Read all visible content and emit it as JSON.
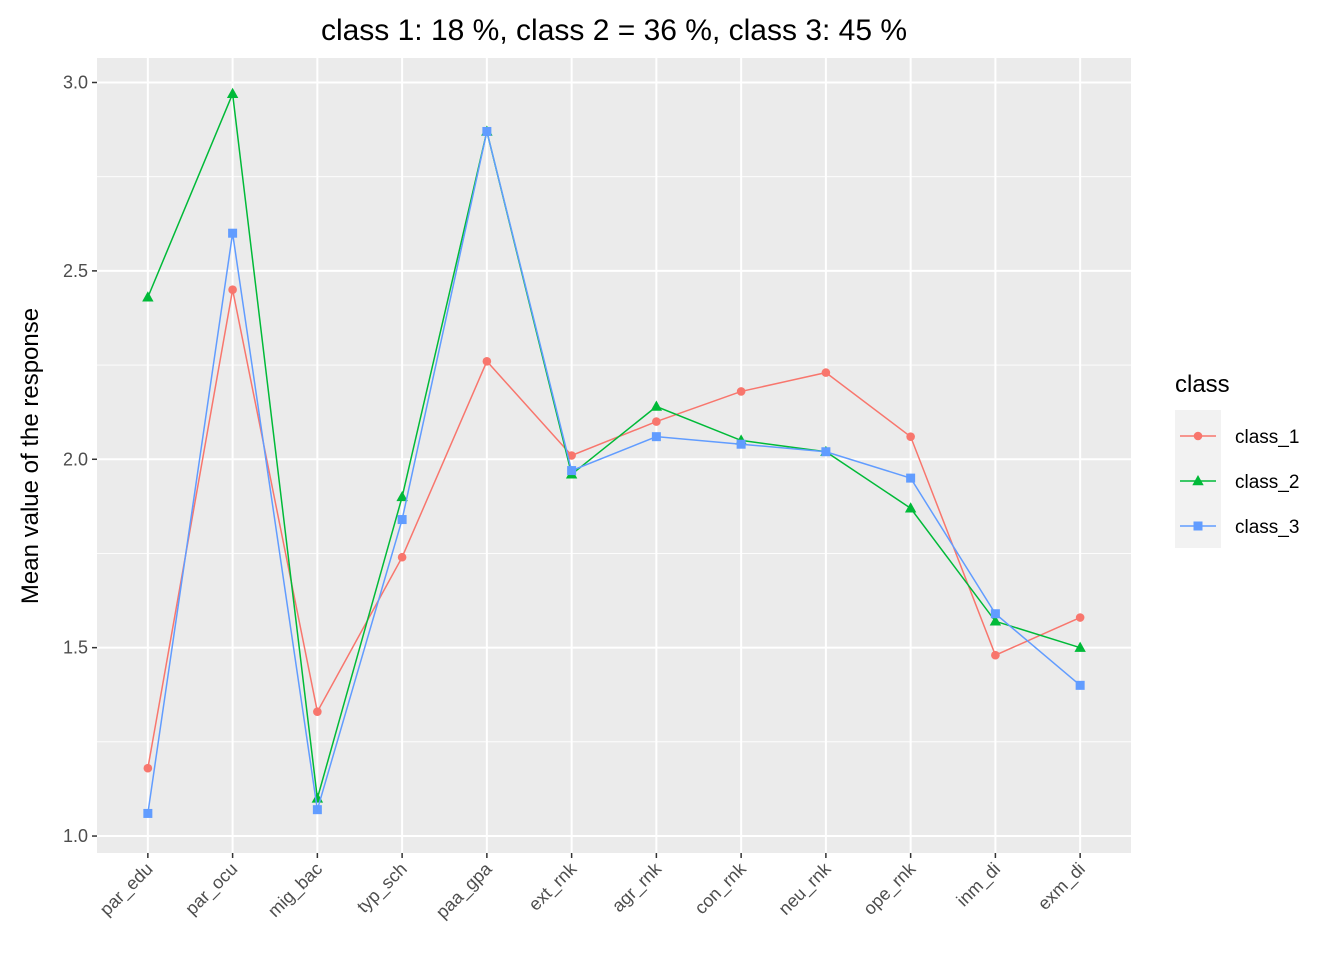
{
  "chart_data": {
    "type": "line",
    "title": "class 1: 18 %, class 2 = 36 %, class 3: 45 %",
    "xlabel": "",
    "ylabel": "Mean value of the response",
    "categories": [
      "par_edu",
      "par_ocu",
      "mig_bac",
      "typ_sch",
      "paa_gpa",
      "ext_rnk",
      "agr_rnk",
      "con_rnk",
      "neu_rnk",
      "ope_rnk",
      "inm_di",
      "exm_di"
    ],
    "ylim": [
      0.955,
      3.065
    ],
    "yticks": [
      1.0,
      1.5,
      2.0,
      2.5,
      3.0
    ],
    "ytick_labels": [
      "1.0",
      "1.5",
      "2.0",
      "2.5",
      "3.0"
    ],
    "grid": true,
    "legend_title": "class",
    "legend_position": "right",
    "series": [
      {
        "name": "class_1",
        "color": "#F8766D",
        "marker": "circle",
        "values": [
          1.18,
          2.45,
          1.33,
          1.74,
          2.26,
          2.01,
          2.1,
          2.18,
          2.23,
          2.06,
          1.48,
          1.58
        ]
      },
      {
        "name": "class_2",
        "color": "#00BA38",
        "marker": "triangle",
        "values": [
          2.43,
          2.97,
          1.1,
          1.9,
          2.87,
          1.96,
          2.14,
          2.05,
          2.02,
          1.87,
          1.57,
          1.5
        ]
      },
      {
        "name": "class_3",
        "color": "#619CFF",
        "marker": "square",
        "values": [
          1.06,
          2.6,
          1.07,
          1.84,
          2.87,
          1.97,
          2.06,
          2.04,
          2.02,
          1.95,
          1.59,
          1.4
        ]
      }
    ]
  }
}
